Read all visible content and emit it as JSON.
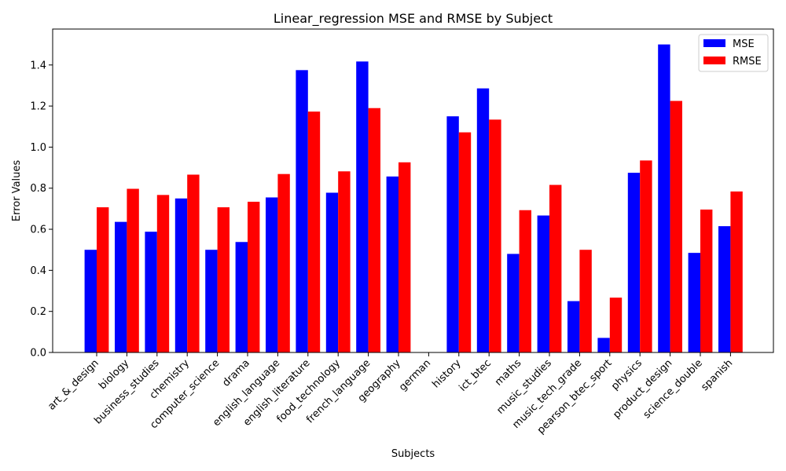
{
  "chart_data": {
    "type": "bar",
    "title": "Linear_regression MSE and RMSE by Subject",
    "xlabel": "Subjects",
    "ylabel": "Error Values",
    "ylim": [
      0,
      1.575
    ],
    "yticks": [
      "0.0",
      "0.2",
      "0.4",
      "0.6",
      "0.8",
      "1.0",
      "1.2",
      "1.4"
    ],
    "grid": false,
    "legend_position": "top-right",
    "categories": [
      "art_&_design",
      "biology",
      "business_studies",
      "chemistry",
      "computer_science",
      "drama",
      "english_language",
      "english_literature",
      "food_technology",
      "french_language",
      "geography",
      "german",
      "history",
      "ict_btec",
      "maths",
      "music_studies",
      "music_tech_grade",
      "pearson_btec_sport",
      "physics",
      "product_design",
      "science_double",
      "spanish"
    ],
    "series": [
      {
        "name": "MSE",
        "color": "#0000ff",
        "values": [
          0.5,
          0.636,
          0.588,
          0.75,
          0.5,
          0.538,
          0.755,
          1.375,
          0.778,
          1.417,
          0.857,
          0.0,
          1.15,
          1.286,
          0.48,
          0.667,
          0.25,
          0.071,
          0.875,
          1.5,
          0.485,
          0.615
        ]
      },
      {
        "name": "RMSE",
        "color": "#ff0000",
        "values": [
          0.707,
          0.797,
          0.767,
          0.866,
          0.707,
          0.734,
          0.869,
          1.173,
          0.882,
          1.19,
          0.926,
          0.0,
          1.072,
          1.134,
          0.693,
          0.816,
          0.5,
          0.267,
          0.935,
          1.225,
          0.696,
          0.784
        ]
      }
    ]
  }
}
